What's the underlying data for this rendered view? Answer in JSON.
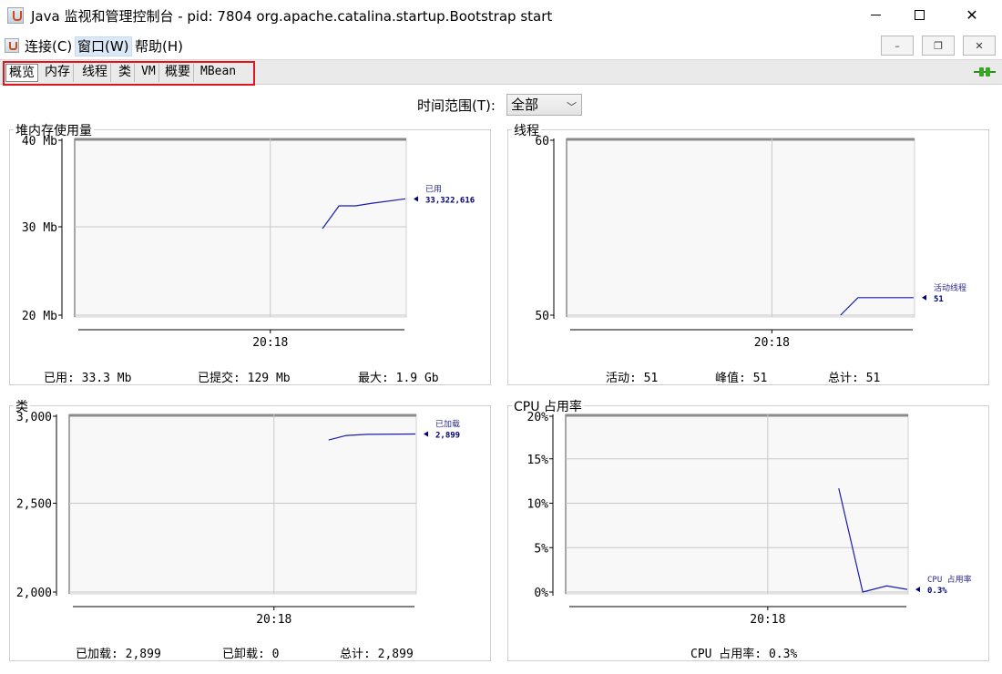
{
  "window": {
    "title": "Java 监视和管理控制台 - pid: 7804 org.apache.catalina.startup.Bootstrap start"
  },
  "menu": [
    "连接(C)",
    "窗口(W)",
    "帮助(H)"
  ],
  "tabs": [
    "概览",
    "内存",
    "线程",
    "类",
    "VM",
    "概要",
    "MBean"
  ],
  "time_range": {
    "label": "时间范围(T):",
    "value": "全部"
  },
  "panels": {
    "heap": {
      "title": "堆内存使用量",
      "stats": {
        "used": "已用:  33.3  Mb",
        "committed": "已提交:  129  Mb",
        "max": "最大:  1.9  Gb"
      }
    },
    "threads": {
      "title": "线程",
      "stats": {
        "live": "活动:  51",
        "peak": "峰值:  51",
        "total": "总计:  51"
      }
    },
    "classes": {
      "title": "类",
      "stats": {
        "loaded": "已加载:  2,899",
        "unloaded": "已卸载:  0",
        "total": "总计:  2,899"
      }
    },
    "cpu": {
      "title": "CPU 占用率",
      "stats": {
        "usage": "CPU 占用率: 0.3%"
      }
    }
  },
  "chart_data": [
    {
      "id": "heap",
      "type": "line",
      "title": "堆内存使用量",
      "yticks": [
        "40 Mb",
        "30 Mb",
        "20 Mb"
      ],
      "ylim": [
        20,
        40
      ],
      "yunit": "Mb",
      "xticks": [
        "20:18"
      ],
      "grid": true,
      "series": [
        {
          "name": "已用",
          "value_label": "33,322,616",
          "points": [
            [
              0.75,
              29.9
            ],
            [
              0.8,
              32.5
            ],
            [
              0.85,
              32.5
            ],
            [
              0.9,
              32.8
            ],
            [
              1.0,
              33.3
            ]
          ]
        }
      ]
    },
    {
      "id": "threads",
      "type": "line",
      "title": "线程",
      "yticks": [
        "60",
        "50"
      ],
      "ylim": [
        50,
        60
      ],
      "xticks": [
        "20:18"
      ],
      "grid": true,
      "series": [
        {
          "name": "活动线程",
          "value_label": "51",
          "points": [
            [
              0.79,
              50
            ],
            [
              0.84,
              51
            ],
            [
              1.0,
              51
            ]
          ]
        }
      ]
    },
    {
      "id": "classes",
      "type": "line",
      "title": "类",
      "yticks": [
        "3,000",
        "2,500",
        "2,000"
      ],
      "ylim": [
        2000,
        3000
      ],
      "xticks": [
        "20:18"
      ],
      "grid": true,
      "series": [
        {
          "name": "已加载",
          "value_label": "2,899",
          "points": [
            [
              0.75,
              2865
            ],
            [
              0.8,
              2890
            ],
            [
              0.86,
              2897
            ],
            [
              1.0,
              2899
            ]
          ]
        }
      ]
    },
    {
      "id": "cpu",
      "type": "line",
      "title": "CPU 占用率",
      "yticks": [
        "20%",
        "15%",
        "10%",
        "5%",
        "0%"
      ],
      "ylim": [
        0,
        20
      ],
      "xticks": [
        "20:18"
      ],
      "grid": true,
      "series": [
        {
          "name": "CPU 占用率",
          "value_label": "0.3%",
          "points": [
            [
              0.8,
              11.8
            ],
            [
              0.87,
              0
            ],
            [
              0.94,
              0.7
            ],
            [
              1.0,
              0.3
            ]
          ]
        }
      ]
    }
  ]
}
